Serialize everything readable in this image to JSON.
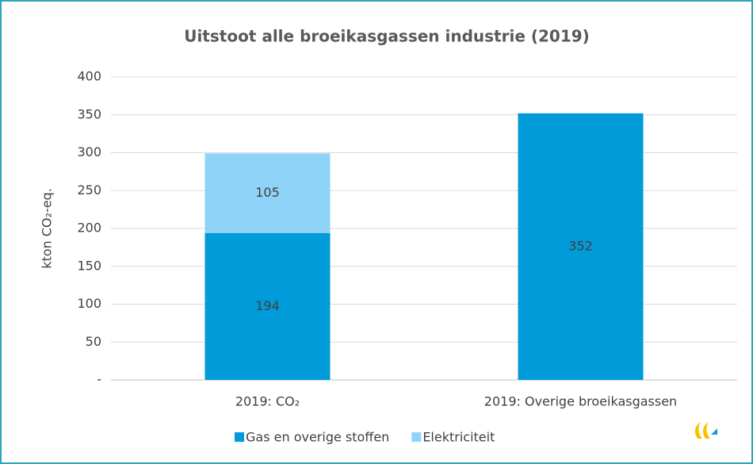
{
  "chart_data": {
    "type": "stacked_bar",
    "title": "Uitstoot alle broeikasgassen industrie (2019)",
    "y_label": "kton CO₂-eq.",
    "categories": [
      "2019: CO₂",
      "2019: Overige broeikasgassen"
    ],
    "series": [
      {
        "name": "Gas en overige stoffen",
        "color": "#009bd8",
        "values": [
          194,
          352
        ]
      },
      {
        "name": "Elektriciteit",
        "color": "#8fd3f8",
        "values": [
          105,
          null
        ]
      }
    ],
    "ylim": [
      0,
      400
    ],
    "yticks": [
      {
        "value": 0,
        "label": "-"
      },
      50,
      100,
      150,
      200,
      250,
      300,
      350,
      400
    ],
    "grid": true,
    "legend": "bottom"
  }
}
